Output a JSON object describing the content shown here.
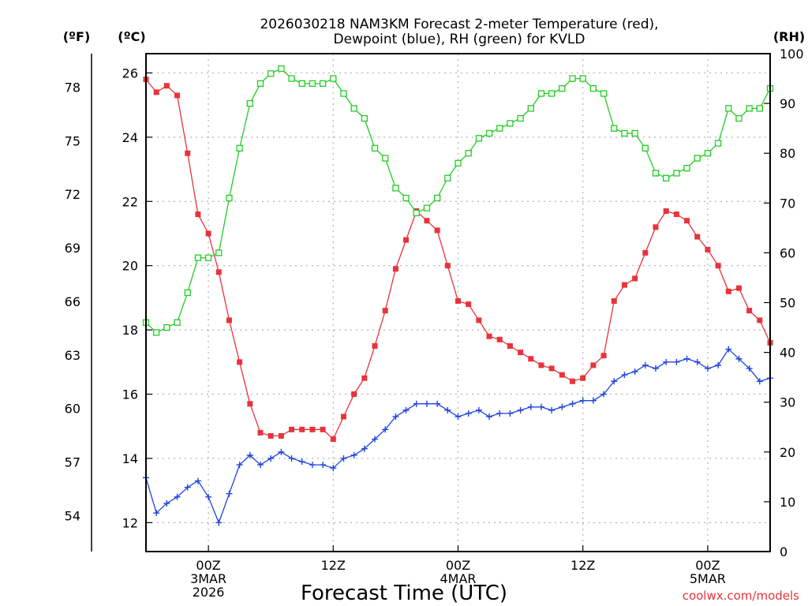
{
  "chart_data": {
    "type": "line",
    "title_line1": "2026030218 NAM3KM Forecast 2-meter Temperature (red),",
    "title_line2": "Dewpoint (blue), RH (green) for KVLD",
    "xlabel": "Forecast Time (UTC)",
    "watermark": "coolwx.com/models",
    "unit_f": "(ºF)",
    "unit_c": "(ºC)",
    "unit_rh": "(RH)",
    "x_range_hours": [
      0,
      60
    ],
    "x_ticks": [
      {
        "hour": 6,
        "line1": "00Z",
        "line2": "3MAR",
        "line3": "2026"
      },
      {
        "hour": 18,
        "line1": "12Z",
        "line2": "",
        "line3": ""
      },
      {
        "hour": 30,
        "line1": "00Z",
        "line2": "4MAR",
        "line3": ""
      },
      {
        "hour": 42,
        "line1": "12Z",
        "line2": "",
        "line3": ""
      },
      {
        "hour": 54,
        "line1": "00Z",
        "line2": "5MAR",
        "line3": ""
      }
    ],
    "y_left_c_range": [
      11.1,
      26.6
    ],
    "y_left_c_ticks": [
      "12",
      "14",
      "16",
      "18",
      "20",
      "22",
      "24",
      "26"
    ],
    "y_left_f_ticks": [
      "54",
      "57",
      "60",
      "63",
      "66",
      "69",
      "72",
      "75",
      "78"
    ],
    "y_right_rh_range": [
      0,
      100
    ],
    "y_right_rh_ticks": [
      "0",
      "10",
      "20",
      "30",
      "40",
      "50",
      "60",
      "70",
      "80",
      "90",
      "100"
    ],
    "grid": "dotted",
    "series": [
      {
        "name": "Temperature",
        "axis": "C",
        "color": "#e8333b",
        "marker": "filled-square",
        "values": [
          25.8,
          25.4,
          25.6,
          25.3,
          23.5,
          21.6,
          21.0,
          19.8,
          18.3,
          17.0,
          15.7,
          14.8,
          14.7,
          14.7,
          14.9,
          14.9,
          14.9,
          14.9,
          14.6,
          15.3,
          16.0,
          16.5,
          17.5,
          18.6,
          19.9,
          20.8,
          21.7,
          21.4,
          21.1,
          20.0,
          18.9,
          18.8,
          18.3,
          17.8,
          17.7,
          17.5,
          17.3,
          17.1,
          16.9,
          16.8,
          16.6,
          16.4,
          16.5,
          16.9,
          17.2,
          18.9,
          19.4,
          19.6,
          20.4,
          21.2,
          21.7,
          21.6,
          21.4,
          20.9,
          20.5,
          20.0,
          19.2,
          19.3,
          18.6,
          18.3,
          17.6
        ]
      },
      {
        "name": "Dewpoint",
        "axis": "C",
        "color": "#2244dd",
        "marker": "plus",
        "values": [
          13.4,
          12.3,
          12.6,
          12.8,
          13.1,
          13.3,
          12.8,
          12.0,
          12.9,
          13.8,
          14.1,
          13.8,
          14.0,
          14.2,
          14.0,
          13.9,
          13.8,
          13.8,
          13.7,
          14.0,
          14.1,
          14.3,
          14.6,
          14.9,
          15.3,
          15.5,
          15.7,
          15.7,
          15.7,
          15.5,
          15.3,
          15.4,
          15.5,
          15.3,
          15.4,
          15.4,
          15.5,
          15.6,
          15.6,
          15.5,
          15.6,
          15.7,
          15.8,
          15.8,
          16.0,
          16.4,
          16.6,
          16.7,
          16.9,
          16.8,
          17.0,
          17.0,
          17.1,
          17.0,
          16.8,
          16.9,
          17.4,
          17.1,
          16.8,
          16.4,
          16.5
        ]
      },
      {
        "name": "RH",
        "axis": "RH",
        "color": "#22cc22",
        "marker": "open-square",
        "values": [
          46,
          44,
          45,
          46,
          52,
          59,
          59,
          60,
          71,
          81,
          90,
          94,
          96,
          97,
          95,
          94,
          94,
          94,
          95,
          92,
          89,
          87,
          81,
          79,
          73,
          71,
          68,
          69,
          71,
          75,
          78,
          80,
          83,
          84,
          85,
          86,
          87,
          89,
          92,
          92,
          93,
          95,
          95,
          93,
          92,
          85,
          84,
          84,
          81,
          76,
          75,
          76,
          77,
          79,
          80,
          82,
          89,
          87,
          89,
          89,
          93
        ]
      }
    ]
  }
}
